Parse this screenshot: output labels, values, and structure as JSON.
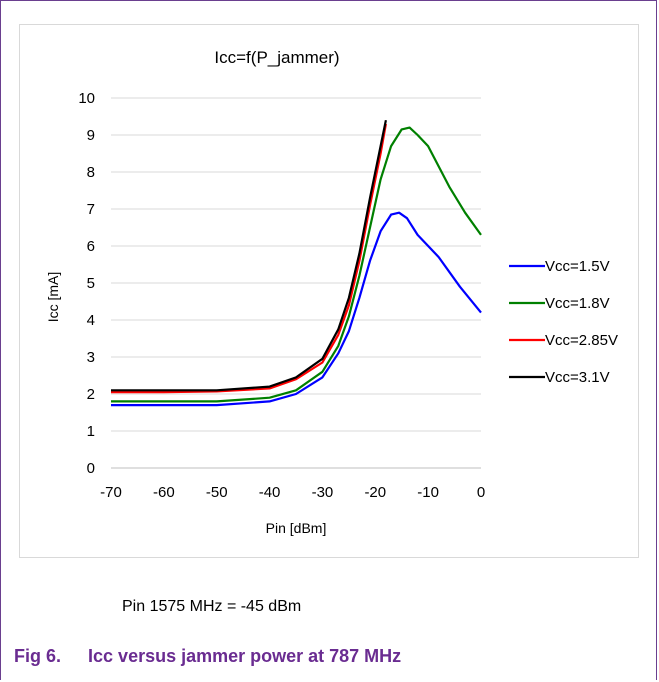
{
  "chart_data": {
    "type": "line",
    "title": "Icc=f(P_jammer)",
    "xlabel": "Pin [dBm]",
    "ylabel": "Icc [mA]",
    "xlim": [
      -70,
      0
    ],
    "ylim": [
      0,
      10
    ],
    "xticks": [
      "-70",
      "-60",
      "-50",
      "-40",
      "-30",
      "-20",
      "-10",
      "0"
    ],
    "yticks": [
      "0",
      "1",
      "2",
      "3",
      "4",
      "5",
      "6",
      "7",
      "8",
      "9",
      "10"
    ],
    "legend_position": "right",
    "grid": "horizontal",
    "series": [
      {
        "name": "Vcc=1.5V",
        "color": "#0000ff",
        "points": [
          [
            -70,
            1.7
          ],
          [
            -60,
            1.7
          ],
          [
            -50,
            1.7
          ],
          [
            -40,
            1.8
          ],
          [
            -35,
            2.0
          ],
          [
            -30,
            2.45
          ],
          [
            -27,
            3.1
          ],
          [
            -25,
            3.7
          ],
          [
            -23,
            4.6
          ],
          [
            -21,
            5.6
          ],
          [
            -19,
            6.4
          ],
          [
            -17,
            6.85
          ],
          [
            -15.5,
            6.9
          ],
          [
            -14,
            6.75
          ],
          [
            -12,
            6.3
          ],
          [
            -8,
            5.7
          ],
          [
            -4,
            4.9
          ],
          [
            0,
            4.2
          ]
        ]
      },
      {
        "name": "Vcc=1.8V",
        "color": "#008000",
        "points": [
          [
            -70,
            1.8
          ],
          [
            -60,
            1.8
          ],
          [
            -50,
            1.8
          ],
          [
            -40,
            1.9
          ],
          [
            -35,
            2.1
          ],
          [
            -30,
            2.6
          ],
          [
            -27,
            3.3
          ],
          [
            -25,
            4.1
          ],
          [
            -23,
            5.2
          ],
          [
            -21,
            6.5
          ],
          [
            -19,
            7.8
          ],
          [
            -17,
            8.7
          ],
          [
            -15,
            9.15
          ],
          [
            -13.5,
            9.2
          ],
          [
            -12,
            9.0
          ],
          [
            -10,
            8.7
          ],
          [
            -6,
            7.6
          ],
          [
            -3,
            6.9
          ],
          [
            0,
            6.3
          ]
        ]
      },
      {
        "name": "Vcc=2.85V",
        "color": "#ff0000",
        "points": [
          [
            -70,
            2.05
          ],
          [
            -60,
            2.05
          ],
          [
            -50,
            2.07
          ],
          [
            -40,
            2.15
          ],
          [
            -35,
            2.4
          ],
          [
            -30,
            2.85
          ],
          [
            -27,
            3.6
          ],
          [
            -25,
            4.4
          ],
          [
            -23,
            5.6
          ],
          [
            -21,
            7.1
          ],
          [
            -19,
            8.5
          ],
          [
            -18,
            9.3
          ]
        ]
      },
      {
        "name": "Vcc=3.1V",
        "color": "#000000",
        "points": [
          [
            -70,
            2.1
          ],
          [
            -60,
            2.1
          ],
          [
            -50,
            2.1
          ],
          [
            -40,
            2.2
          ],
          [
            -35,
            2.45
          ],
          [
            -30,
            2.95
          ],
          [
            -27,
            3.75
          ],
          [
            -25,
            4.6
          ],
          [
            -23,
            5.8
          ],
          [
            -21,
            7.3
          ],
          [
            -19,
            8.7
          ],
          [
            -18,
            9.4
          ]
        ]
      }
    ]
  },
  "pin_note": "Pin 1575 MHz = -45 dBm",
  "caption": {
    "fig": "Fig 6.",
    "text": "Icc versus jammer power at 787 MHz"
  }
}
